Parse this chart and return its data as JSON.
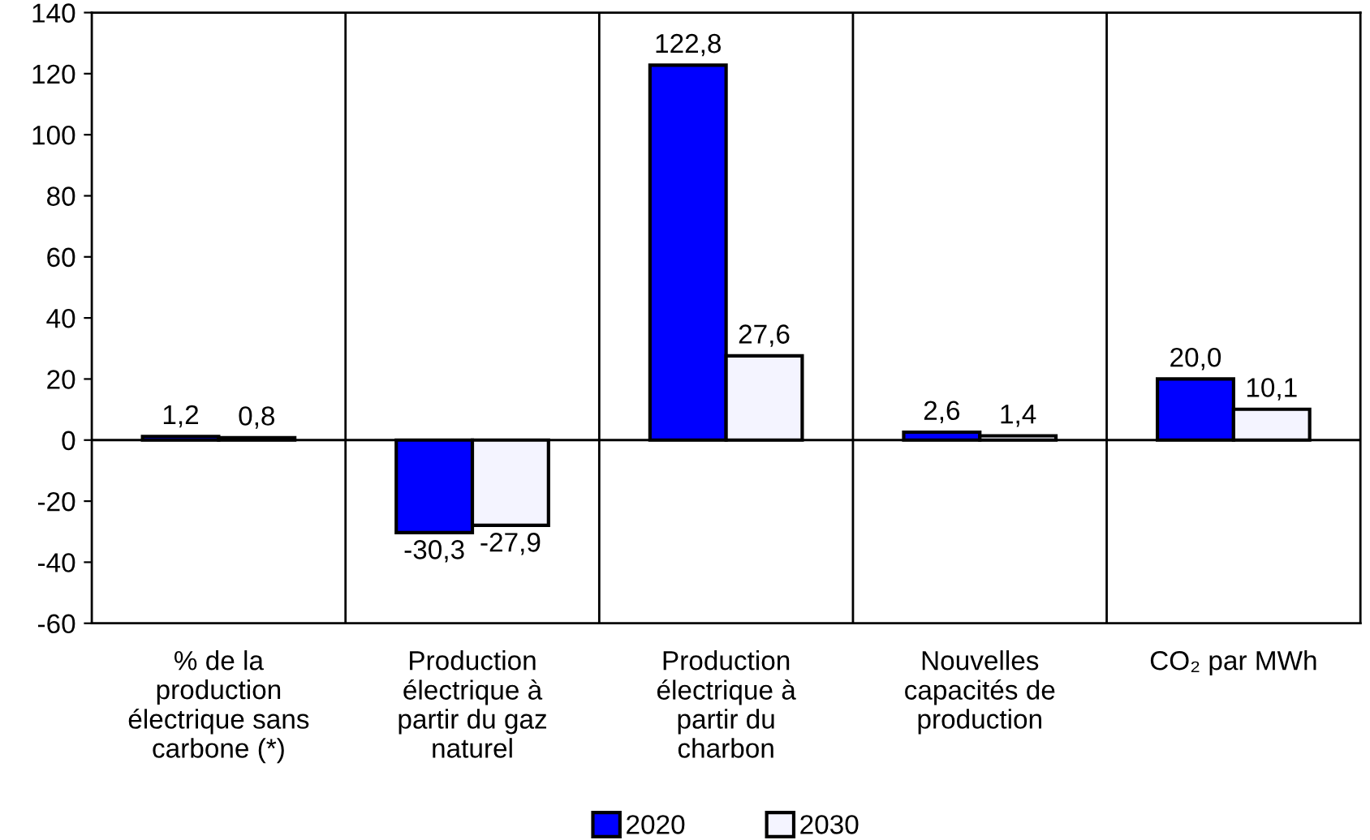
{
  "chart_data": {
    "type": "bar",
    "categories": [
      "% de la\nproduction\nélectrique sans\ncarbone (*)",
      "Production\nélectrique à\npartir du gaz\nnaturel",
      "Production\nélectrique à\npartir du\ncharbon",
      "Nouvelles\ncapacités de\nproduction",
      "CO₂ par MWh"
    ],
    "series": [
      {
        "name": "2020",
        "color": "#0000ff",
        "values": [
          1.2,
          -30.3,
          122.8,
          2.6,
          20.0
        ],
        "value_labels": [
          "1,2",
          "-30,3",
          "122,8",
          "2,6",
          "20,0"
        ]
      },
      {
        "name": "2030",
        "color": "#f4f4ff",
        "values": [
          0.8,
          -27.9,
          27.6,
          1.4,
          10.1
        ],
        "value_labels": [
          "0,8",
          "-27,9",
          "27,6",
          "1,4",
          "10,1"
        ]
      }
    ],
    "ylim": [
      -60,
      140
    ],
    "yticks": [
      -60,
      -40,
      -20,
      0,
      20,
      40,
      60,
      80,
      100,
      120,
      140
    ],
    "grid": "x",
    "ref_lines": [
      {
        "axis": "y",
        "value": 0,
        "color": "#000000"
      }
    ],
    "legend": "bottom"
  }
}
